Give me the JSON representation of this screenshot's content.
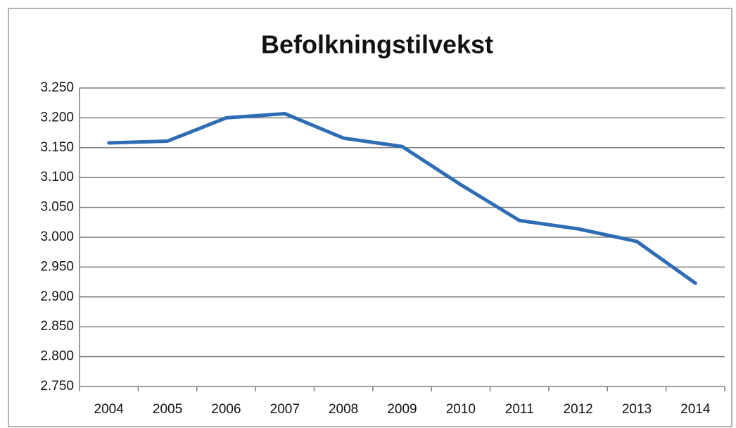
{
  "chart_data": {
    "type": "line",
    "title": "Befolkningstilvekst",
    "categories": [
      "2004",
      "2005",
      "2006",
      "2007",
      "2008",
      "2009",
      "2010",
      "2011",
      "2012",
      "2013",
      "2014"
    ],
    "series": [
      {
        "name": "Befolkningstilvekst",
        "color": "#2e6db4",
        "values": [
          3158,
          3161,
          3200,
          3207,
          3166,
          3152,
          3088,
          3028,
          3014,
          2993,
          2923
        ]
      }
    ],
    "ylim": [
      2750,
      3250
    ],
    "yticks": [
      {
        "value": 2750,
        "label": "2.750"
      },
      {
        "value": 2800,
        "label": "2.800"
      },
      {
        "value": 2850,
        "label": "2.850"
      },
      {
        "value": 2900,
        "label": "2.900"
      },
      {
        "value": 2950,
        "label": "2.950"
      },
      {
        "value": 3000,
        "label": "3.000"
      },
      {
        "value": 3050,
        "label": "3.050"
      },
      {
        "value": 3100,
        "label": "3.100"
      },
      {
        "value": 3150,
        "label": "3.150"
      },
      {
        "value": 3200,
        "label": "3.200"
      },
      {
        "value": 3250,
        "label": "3.250"
      }
    ],
    "grid": true
  }
}
